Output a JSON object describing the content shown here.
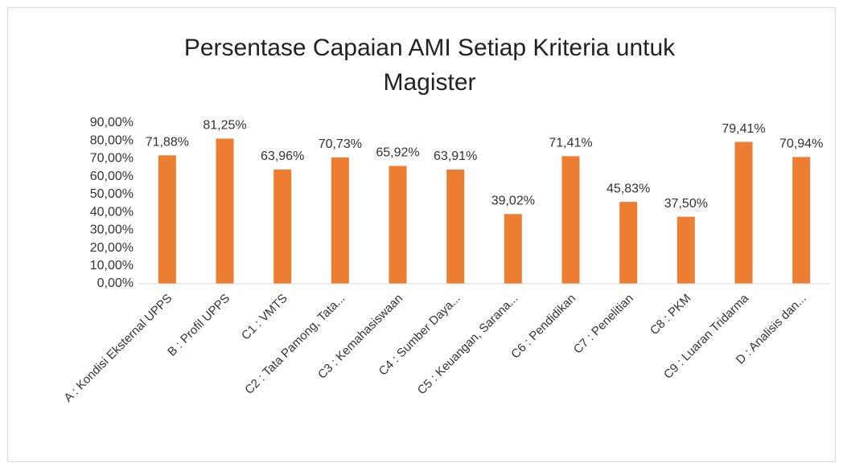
{
  "chart_data": {
    "type": "bar",
    "title": "Persentase Capaian AMI Setiap Kriteria untuk Magister",
    "categories": [
      "A : Kondisi Eksternal UPPS",
      "B : Profil UPPS",
      "C1 : VMTS",
      "C2 : Tata Pamong, Tata...",
      "C3 : Kemahasiswaan",
      "C4 : Sumber Daya...",
      "C5 : Keuangan, Sarana...",
      "C6 : Pendidikan",
      "C7 : Penelitian",
      "C8 : PKM",
      "C9 : Luaran Tridarma",
      "D : Analisis dan..."
    ],
    "values": [
      71.88,
      81.25,
      63.96,
      70.73,
      65.92,
      63.91,
      39.02,
      71.41,
      45.83,
      37.5,
      79.41,
      70.94
    ],
    "value_labels": [
      "71,88%",
      "81,25%",
      "63,96%",
      "70,73%",
      "65,92%",
      "63,91%",
      "39,02%",
      "71,41%",
      "45,83%",
      "37,50%",
      "79,41%",
      "70,94%"
    ],
    "color": "#ed7d31",
    "ylim": [
      0,
      90
    ],
    "yticks": [
      {
        "value": 0,
        "label": "0,00%"
      },
      {
        "value": 10,
        "label": "10,00%"
      },
      {
        "value": 20,
        "label": "20,00%"
      },
      {
        "value": 30,
        "label": "30,00%"
      },
      {
        "value": 40,
        "label": "40,00%"
      },
      {
        "value": 50,
        "label": "50,00%"
      },
      {
        "value": 60,
        "label": "60,00%"
      },
      {
        "value": 70,
        "label": "70,00%"
      },
      {
        "value": 80,
        "label": "80,00%"
      },
      {
        "value": 90,
        "label": "90,00%"
      }
    ],
    "grid": false
  }
}
